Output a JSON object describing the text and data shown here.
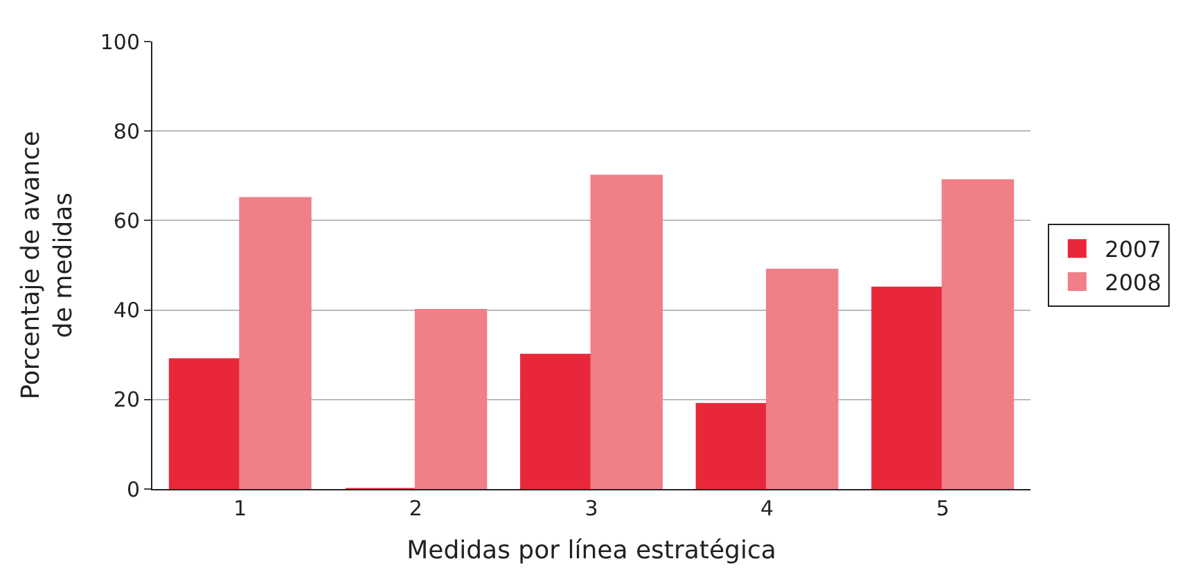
{
  "chart_data": {
    "type": "bar",
    "xlabel": "Medidas por línea estratégica",
    "ylabel": "Porcentaje de avance\nde medidas",
    "categories": [
      "1",
      "2",
      "3",
      "4",
      "5"
    ],
    "series": [
      {
        "name": "2007",
        "color": "#e8283a",
        "values": [
          29,
          0,
          30,
          19,
          45
        ]
      },
      {
        "name": "2008",
        "color": "#f07f88",
        "values": [
          65,
          40,
          70,
          49,
          69
        ]
      }
    ],
    "ylim": [
      0,
      100
    ],
    "yticks": [
      0,
      20,
      40,
      60,
      80,
      100
    ],
    "grid": "y",
    "legend": "right"
  }
}
